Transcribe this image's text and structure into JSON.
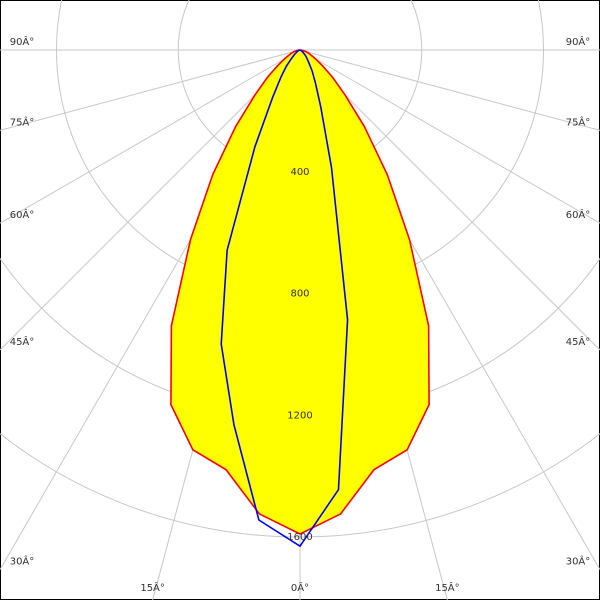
{
  "chart_data": {
    "type": "polar",
    "x": [
      -90,
      -85,
      -80,
      -75,
      -70,
      -65,
      -60,
      -55,
      -50,
      -45,
      -40,
      -35,
      -30,
      -25,
      -20,
      -15,
      -10,
      -5,
      0,
      5,
      10,
      15,
      20,
      25,
      30,
      35,
      40,
      45,
      50,
      55,
      60,
      65,
      70,
      75,
      80,
      85,
      90
    ],
    "series": [
      {
        "color": "#ff0000",
        "fill": "#ffff00",
        "values": [
          0,
          5,
          10,
          20,
          30,
          40,
          60,
          90,
          140,
          210,
          330,
          500,
          720,
          1000,
          1240,
          1360,
          1400,
          1530,
          1590,
          1530,
          1400,
          1360,
          1240,
          1000,
          720,
          500,
          330,
          210,
          140,
          90,
          60,
          40,
          30,
          20,
          10,
          5,
          0
        ]
      },
      {
        "color": "#0000ff",
        "values": [
          0,
          0,
          0,
          5,
          5,
          10,
          10,
          15,
          25,
          40,
          70,
          110,
          180,
          350,
          700,
          1000,
          1250,
          1550,
          1630,
          1450,
          900,
          400,
          200,
          120,
          80,
          50,
          35,
          25,
          15,
          10,
          5,
          5,
          0,
          0,
          0,
          0,
          0
        ]
      }
    ],
    "rlim": [
      0,
      1600
    ],
    "rticks": [
      400,
      800,
      1200,
      1600
    ],
    "thetaticks": [
      {
        "value": -90,
        "label": "90Â°"
      },
      {
        "value": -75,
        "label": "75Â°"
      },
      {
        "value": -60,
        "label": "60Â°"
      },
      {
        "value": -45,
        "label": "45Â°"
      },
      {
        "value": -30,
        "label": "30Â°"
      },
      {
        "value": -15,
        "label": "15Â°"
      },
      {
        "value": 0,
        "label": "0Â°"
      },
      {
        "value": 15,
        "label": "15Â°"
      },
      {
        "value": 30,
        "label": "30Â°"
      },
      {
        "value": 45,
        "label": "45Â°"
      },
      {
        "value": 60,
        "label": "60Â°"
      },
      {
        "value": 75,
        "label": "75Â°"
      },
      {
        "value": 90,
        "label": "90Â°"
      }
    ],
    "grid": true
  }
}
